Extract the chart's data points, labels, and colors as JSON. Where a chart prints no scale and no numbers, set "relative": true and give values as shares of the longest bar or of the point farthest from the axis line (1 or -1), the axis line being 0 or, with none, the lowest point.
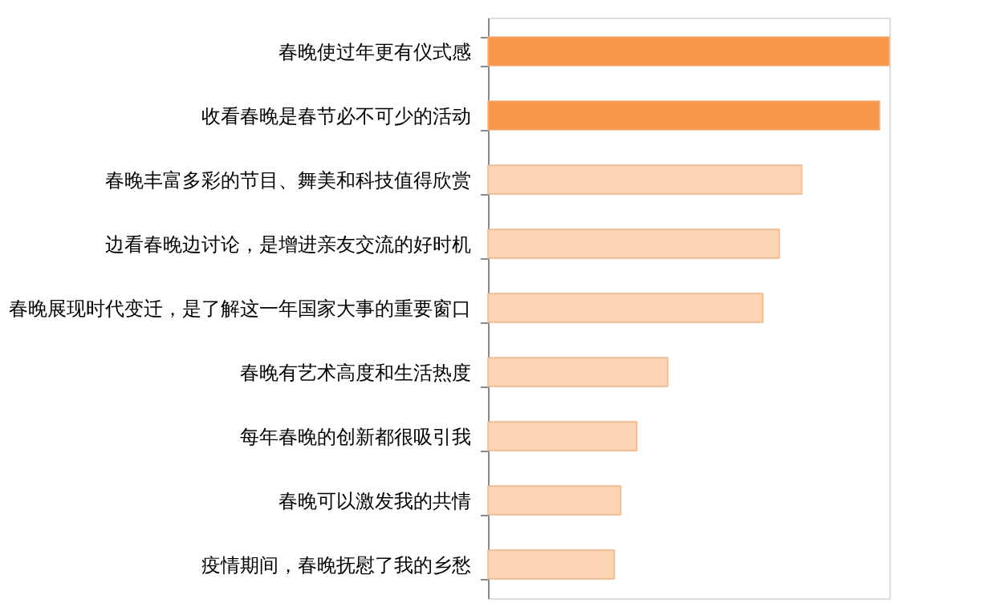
{
  "chart_data": {
    "type": "bar",
    "orientation": "horizontal",
    "relative": true,
    "categories": [
      "春晚使过年更有仪式感",
      "收看春晚是春节必不可少的活动",
      "春晚丰富多彩的节目、舞美和科技值得欣赏",
      "边看春晚边讨论，是增进亲友交流的好时机",
      "春晚展现时代变迁，是了解这一年国家大事的重要窗口",
      "春晚有艺术高度和生活热度",
      "每年春晚的创新都很吸引我",
      "春晚可以激发我的共情",
      "疫情期间，春晚抚慰了我的乡愁"
    ],
    "values": [
      1,
      0.976,
      0.782,
      0.726,
      0.685,
      0.448,
      0.371,
      0.331,
      0.315
    ],
    "colors": [
      "#f79646",
      "#f79646",
      "#fcd5b4",
      "#fcd5b4",
      "#fcd5b4",
      "#fcd5b4",
      "#fcd5b4",
      "#fcd5b4",
      "#fcd5b4"
    ]
  }
}
